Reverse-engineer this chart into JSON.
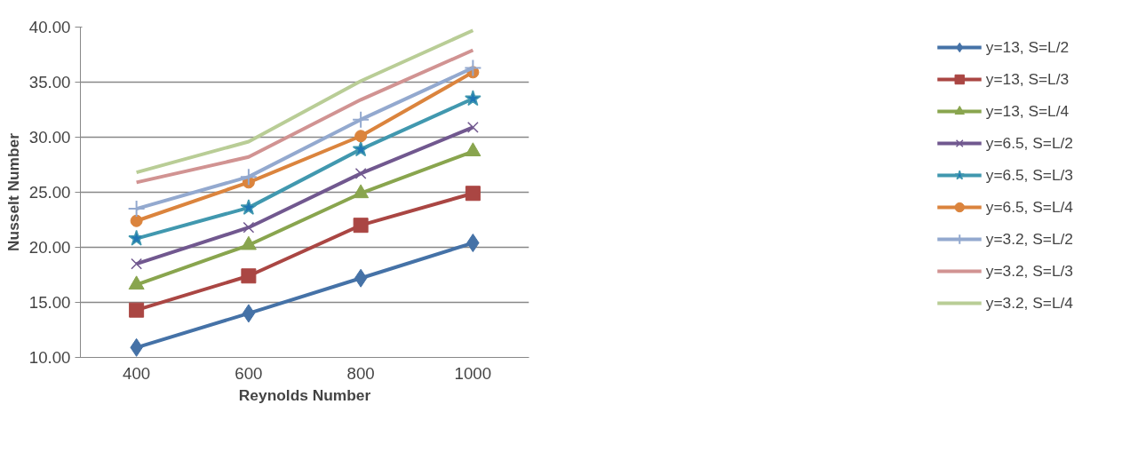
{
  "chart_data": {
    "type": "line",
    "xlabel": "Reynolds Number",
    "ylabel": "Nusselt Number",
    "categories": [
      "400",
      "600",
      "800",
      "1000"
    ],
    "ylim": [
      10,
      40
    ],
    "yticks": [
      {
        "value": 10,
        "label": "10.00"
      },
      {
        "value": 15,
        "label": "15.00"
      },
      {
        "value": 20,
        "label": "20.00"
      },
      {
        "value": 25,
        "label": "25.00"
      },
      {
        "value": 30,
        "label": "30.00"
      },
      {
        "value": 35,
        "label": "35.00"
      },
      {
        "value": 40,
        "label": "40.00"
      }
    ],
    "grid": "y",
    "legend": "right",
    "line_style": "solid",
    "series": [
      {
        "name": "y=13, S=L/2",
        "color": "#4572a7",
        "marker": "diamond",
        "values": [
          10.9,
          14.0,
          17.2,
          20.4
        ]
      },
      {
        "name": "y=13, S=L/3",
        "color": "#aa4643",
        "marker": "square",
        "values": [
          14.3,
          17.4,
          22.0,
          24.9
        ]
      },
      {
        "name": "y=13, S=L/4",
        "color": "#89a54e",
        "marker": "triangle",
        "values": [
          16.6,
          20.2,
          24.9,
          28.7
        ]
      },
      {
        "name": "y=6.5, S=L/2",
        "color": "#71588f",
        "marker": "x",
        "values": [
          18.5,
          21.8,
          26.7,
          30.9
        ]
      },
      {
        "name": "y=6.5, S=L/3",
        "color": "#4198af",
        "marker": "star",
        "values": [
          20.8,
          23.6,
          28.9,
          33.5
        ]
      },
      {
        "name": "y=6.5, S=L/4",
        "color": "#db843d",
        "marker": "circle",
        "values": [
          22.4,
          25.9,
          30.1,
          35.9
        ]
      },
      {
        "name": "y=3.2, S=L/2",
        "color": "#93a9cf",
        "marker": "cross",
        "values": [
          23.5,
          26.4,
          31.6,
          36.3
        ]
      },
      {
        "name": "y=3.2, S=L/3",
        "color": "#d19392",
        "marker": "none",
        "values": [
          25.9,
          28.2,
          33.4,
          37.9
        ]
      },
      {
        "name": "y=3.2, S=L/4",
        "color": "#b9cd96",
        "marker": "none",
        "values": [
          26.8,
          29.6,
          35.1,
          39.7
        ]
      }
    ]
  }
}
